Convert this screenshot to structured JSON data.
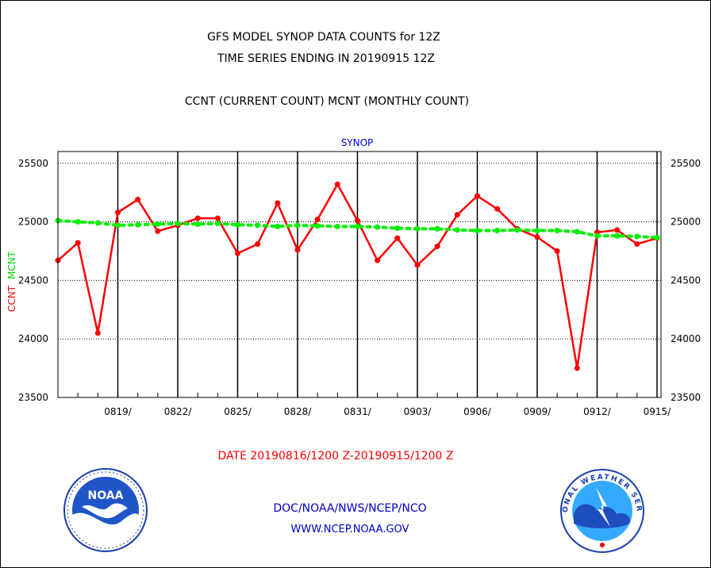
{
  "header": {
    "title_line1": "GFS MODEL SYNOP DATA COUNTS for 12Z",
    "title_line2": "TIME SERIES ENDING IN 20190915 12Z",
    "subtitle": "CCNT (CURRENT COUNT) MCNT (MONTHLY COUNT)"
  },
  "footer": {
    "date_range": "DATE 20190816/1200 Z-20190915/1200 Z",
    "org_line": "DOC/NOAA/NWS/NCEP/NCO",
    "url_line": "WWW.NCEP.NOAA.GOV",
    "noaa_logo_text": "NOAA",
    "nws_logo_text": "NATIONAL WEATHER SERVICE"
  },
  "chart_data": {
    "type": "line",
    "title": "SYNOP",
    "ylabel_ccnt": "CCNT",
    "ylabel_mcnt": "MCNT",
    "ylim": [
      23500,
      25600
    ],
    "yticks": [
      23500,
      24000,
      24500,
      25000,
      25500
    ],
    "xlim": [
      0,
      30.2
    ],
    "xticks": [
      {
        "day": 3,
        "label": "0819/"
      },
      {
        "day": 6,
        "label": "0822/"
      },
      {
        "day": 9,
        "label": "0825/"
      },
      {
        "day": 12,
        "label": "0828/"
      },
      {
        "day": 15,
        "label": "0831/"
      },
      {
        "day": 18,
        "label": "0903/"
      },
      {
        "day": 21,
        "label": "0906/"
      },
      {
        "day": 24,
        "label": "0909/"
      },
      {
        "day": 27,
        "label": "0912/"
      },
      {
        "day": 30,
        "label": "0915/"
      }
    ],
    "grid": true,
    "series": [
      {
        "name": "CCNT",
        "color": "#ff0000",
        "x": [
          0,
          1,
          2,
          3,
          4,
          5,
          6,
          7,
          8,
          9,
          10,
          11,
          12,
          13,
          14,
          15,
          16,
          17,
          18,
          19,
          20,
          21,
          22,
          23,
          24,
          25,
          26,
          27,
          28,
          29,
          30
        ],
        "values": [
          24670,
          24820,
          24050,
          25080,
          25190,
          24920,
          24970,
          25030,
          25030,
          24730,
          24810,
          25160,
          24760,
          25020,
          25320,
          25010,
          24670,
          24860,
          24630,
          24790,
          25060,
          25220,
          25110,
          24940,
          24870,
          24750,
          23750,
          24910,
          24930,
          24810,
          24860
        ]
      },
      {
        "name": "MCNT",
        "color": "#00ee00",
        "x": [
          0,
          1,
          2,
          3,
          4,
          5,
          6,
          7,
          8,
          9,
          10,
          11,
          12,
          13,
          14,
          15,
          16,
          17,
          18,
          19,
          20,
          21,
          22,
          23,
          24,
          25,
          26,
          27,
          28,
          29,
          30
        ],
        "values": [
          25010,
          25000,
          24990,
          24970,
          24975,
          24980,
          24985,
          24980,
          24985,
          24975,
          24970,
          24960,
          24970,
          24965,
          24960,
          24960,
          24955,
          24945,
          24940,
          24940,
          24930,
          24925,
          24925,
          24930,
          24925,
          24925,
          24915,
          24880,
          24880,
          24875,
          24865
        ]
      }
    ]
  }
}
